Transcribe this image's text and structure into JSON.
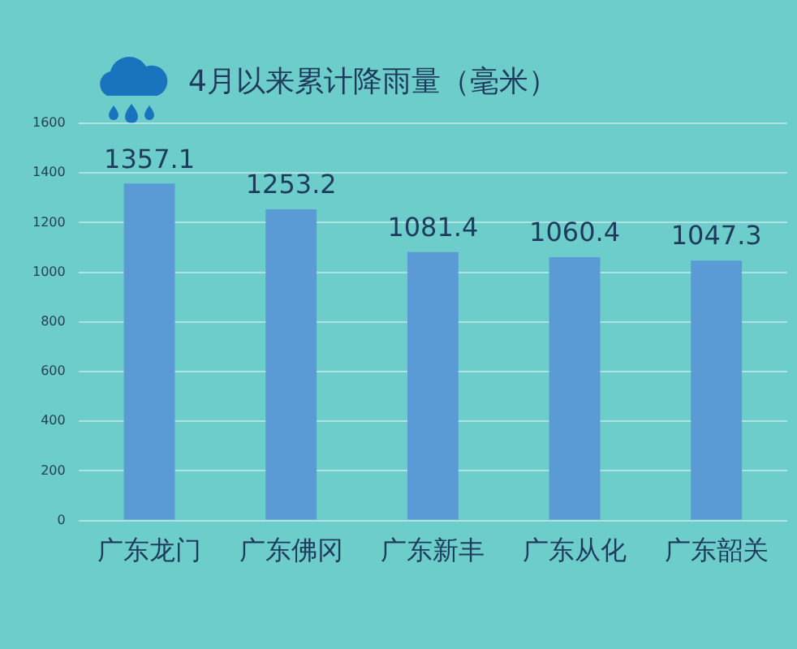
{
  "chart_data": {
    "type": "bar",
    "title": "4月以来累计降雨量（毫米）",
    "categories": [
      "广东龙门",
      "广东佛冈",
      "广东新丰",
      "广东从化",
      "广东韶关"
    ],
    "values": [
      1357.1,
      1253.2,
      1081.4,
      1060.4,
      1047.3
    ],
    "color": "#5b9bd5",
    "ylim": [
      0,
      1600
    ],
    "yticks": [
      0,
      200,
      400,
      600,
      800,
      1000,
      1200,
      1400,
      1600
    ],
    "grid": "y",
    "legend": false,
    "data_labels": true
  }
}
